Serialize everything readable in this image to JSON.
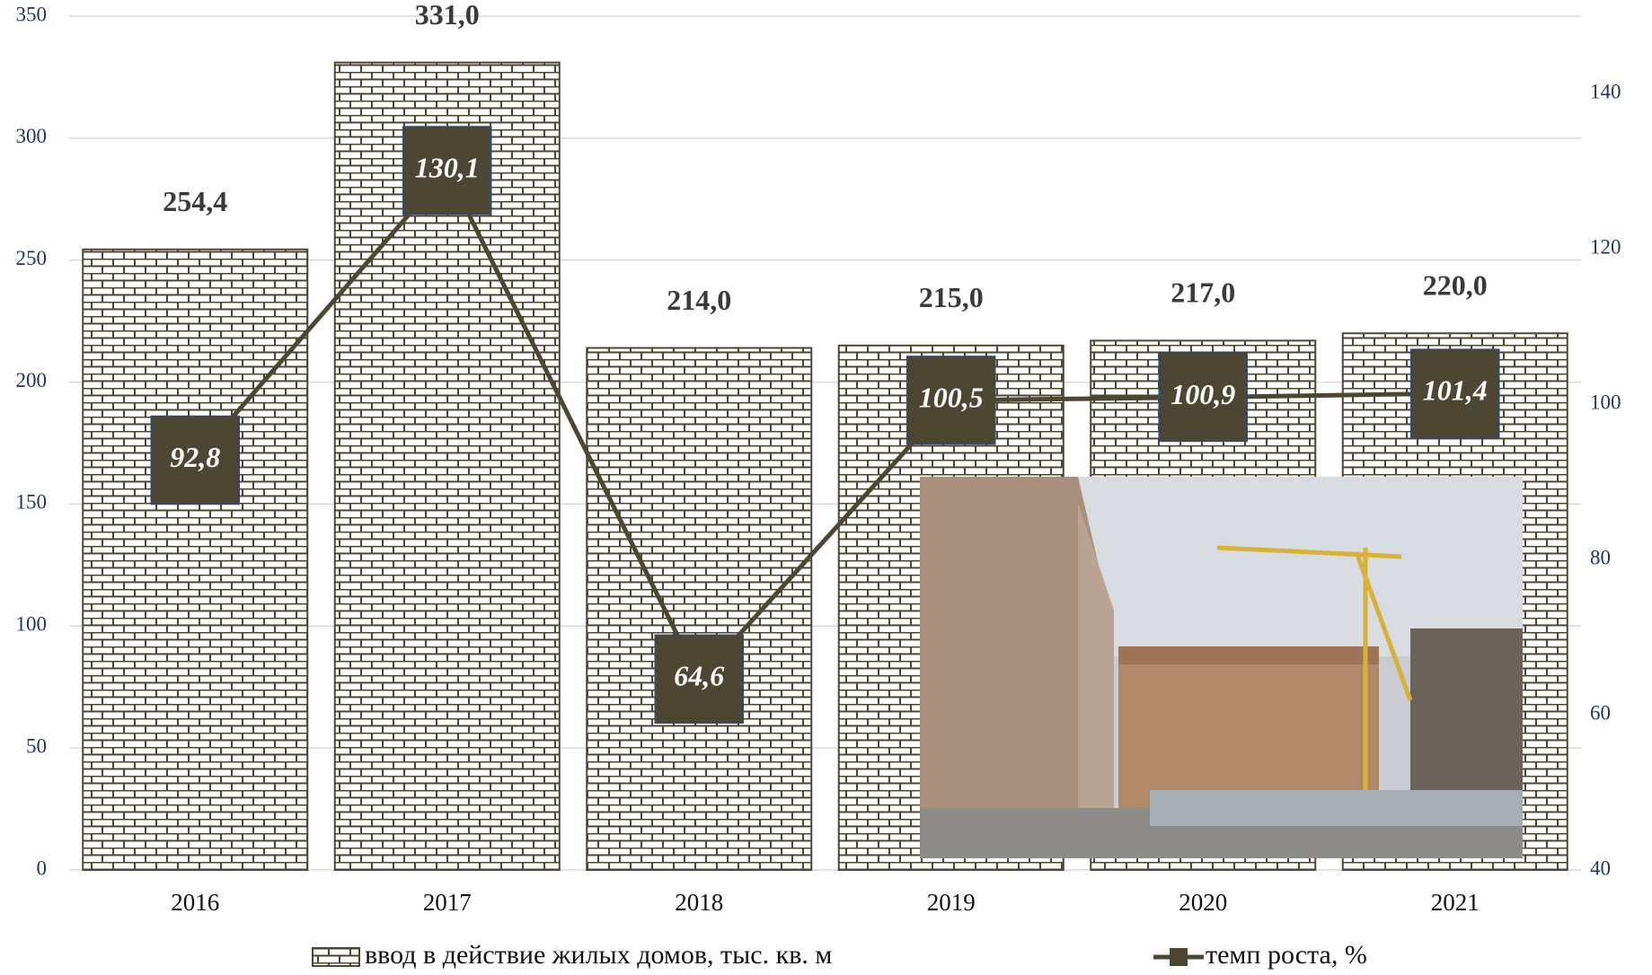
{
  "chart_data": {
    "type": "bar",
    "categories": [
      "2016",
      "2017",
      "2018",
      "2019",
      "2020",
      "2021"
    ],
    "ylim": [
      0,
      350
    ],
    "yticks": [
      0,
      50,
      100,
      150,
      200,
      250,
      300,
      350
    ],
    "y2lim": [
      40,
      150
    ],
    "y2ticks": [
      40,
      60,
      80,
      100,
      120,
      140
    ],
    "grid": true,
    "series": [
      {
        "name": "ввод в действие жилых домов, тыс. кв. м",
        "type": "bar",
        "color": "#4d4632",
        "values": [
          254.4,
          331.0,
          214.0,
          215.0,
          217.0,
          220.0
        ],
        "value_labels": [
          "254,4",
          "331,0",
          "214,0",
          "215,0",
          "217,0",
          "220,0"
        ]
      },
      {
        "name": "темп роста, %",
        "type": "line",
        "axis": "y2",
        "color": "#4d4632",
        "values": [
          92.8,
          130.1,
          64.6,
          100.5,
          100.9,
          101.4
        ],
        "value_labels": [
          "92,8",
          "130,1",
          "64,6",
          "100,5",
          "100,9",
          "101,4"
        ]
      }
    ]
  }
}
